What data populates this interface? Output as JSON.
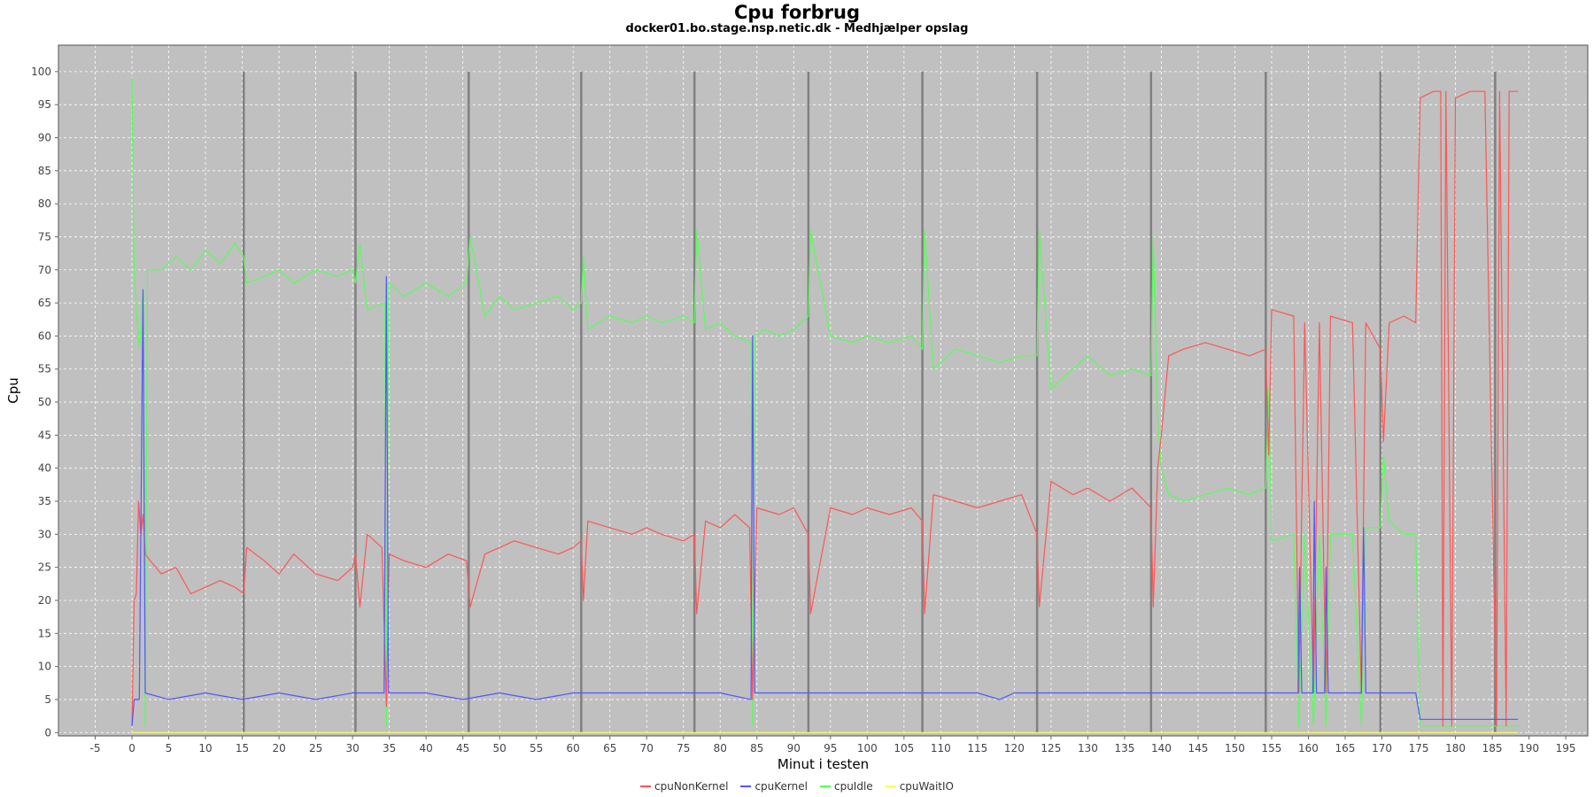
{
  "chart_data": {
    "type": "line",
    "title": "Cpu forbrug",
    "subtitle": "docker01.bo.stage.nsp.netic.dk - Medhjælper opslag",
    "xlabel": "Minut i testen",
    "ylabel": "Cpu",
    "xlim": [
      -10,
      198
    ],
    "ylim": [
      -0.5,
      104
    ],
    "xticks": [
      -5,
      0,
      5,
      10,
      15,
      20,
      25,
      30,
      35,
      40,
      45,
      50,
      55,
      60,
      65,
      70,
      75,
      80,
      85,
      90,
      95,
      100,
      105,
      110,
      115,
      120,
      125,
      130,
      135,
      140,
      145,
      150,
      155,
      160,
      165,
      170,
      175,
      180,
      185,
      190,
      195
    ],
    "yticks": [
      0,
      5,
      10,
      15,
      20,
      25,
      30,
      35,
      40,
      45,
      50,
      55,
      60,
      65,
      70,
      75,
      80,
      85,
      90,
      95,
      100
    ],
    "grid": true,
    "background": "#c0c0c0",
    "legend_position": "bottom",
    "markers": {
      "color": "#808080",
      "x": [
        15.2,
        30.4,
        45.8,
        61.1,
        76.5,
        92.0,
        107.5,
        123.1,
        138.6,
        154.2,
        169.8,
        185.4
      ]
    },
    "series": [
      {
        "name": "cpuNonKernel",
        "color": "#ff5555",
        "points": [
          [
            0,
            1
          ],
          [
            0.3,
            20
          ],
          [
            0.6,
            21
          ],
          [
            0.9,
            35
          ],
          [
            1.2,
            30
          ],
          [
            1.5,
            33
          ],
          [
            1.8,
            27
          ],
          [
            2.5,
            26
          ],
          [
            4,
            24
          ],
          [
            6,
            25
          ],
          [
            8,
            21
          ],
          [
            10,
            22
          ],
          [
            12,
            23
          ],
          [
            14,
            22
          ],
          [
            15.2,
            21
          ],
          [
            15.6,
            28
          ],
          [
            18,
            26
          ],
          [
            20,
            24
          ],
          [
            22,
            27
          ],
          [
            25,
            24
          ],
          [
            28,
            23
          ],
          [
            30,
            25
          ],
          [
            30.4,
            27
          ],
          [
            31,
            19
          ],
          [
            32,
            30
          ],
          [
            34,
            28
          ],
          [
            34.6,
            4
          ],
          [
            35,
            27
          ],
          [
            37,
            26
          ],
          [
            40,
            25
          ],
          [
            43,
            27
          ],
          [
            45.5,
            26
          ],
          [
            46,
            19
          ],
          [
            48,
            27
          ],
          [
            50,
            28
          ],
          [
            52,
            29
          ],
          [
            55,
            28
          ],
          [
            58,
            27
          ],
          [
            60,
            28
          ],
          [
            61.1,
            29
          ],
          [
            61.4,
            20
          ],
          [
            62,
            32
          ],
          [
            65,
            31
          ],
          [
            68,
            30
          ],
          [
            70,
            31
          ],
          [
            72,
            30
          ],
          [
            75,
            29
          ],
          [
            76.5,
            30
          ],
          [
            76.8,
            18
          ],
          [
            78,
            32
          ],
          [
            80,
            31
          ],
          [
            82,
            33
          ],
          [
            84,
            31
          ],
          [
            84.4,
            5
          ],
          [
            85,
            34
          ],
          [
            88,
            33
          ],
          [
            90,
            34
          ],
          [
            92,
            30
          ],
          [
            92.3,
            18
          ],
          [
            95,
            34
          ],
          [
            98,
            33
          ],
          [
            100,
            34
          ],
          [
            103,
            33
          ],
          [
            106,
            34
          ],
          [
            107.5,
            32
          ],
          [
            107.8,
            18
          ],
          [
            109,
            36
          ],
          [
            112,
            35
          ],
          [
            115,
            34
          ],
          [
            118,
            35
          ],
          [
            121,
            36
          ],
          [
            123.1,
            30
          ],
          [
            123.4,
            19
          ],
          [
            125,
            38
          ],
          [
            128,
            36
          ],
          [
            130,
            37
          ],
          [
            133,
            35
          ],
          [
            136,
            37
          ],
          [
            138.6,
            34
          ],
          [
            138.9,
            19
          ],
          [
            139.5,
            40
          ],
          [
            140,
            45
          ],
          [
            141,
            57
          ],
          [
            143,
            58
          ],
          [
            146,
            59
          ],
          [
            149,
            58
          ],
          [
            152,
            57
          ],
          [
            154.2,
            58
          ],
          [
            154.6,
            42
          ],
          [
            155,
            64
          ],
          [
            158,
            63
          ],
          [
            158.7,
            6
          ],
          [
            159.5,
            62
          ],
          [
            160.7,
            6
          ],
          [
            161.5,
            62
          ],
          [
            162.4,
            6
          ],
          [
            163,
            63
          ],
          [
            166,
            62
          ],
          [
            167.2,
            6
          ],
          [
            167.8,
            62
          ],
          [
            169.8,
            58
          ],
          [
            170.2,
            44
          ],
          [
            171,
            62
          ],
          [
            173,
            63
          ],
          [
            174.6,
            62
          ],
          [
            175.2,
            96
          ],
          [
            177,
            97
          ],
          [
            178,
            97
          ],
          [
            178.3,
            1
          ],
          [
            178.7,
            97
          ],
          [
            179.5,
            1
          ],
          [
            180,
            96
          ],
          [
            182,
            97
          ],
          [
            184,
            97
          ],
          [
            185.6,
            1
          ],
          [
            186,
            97
          ],
          [
            186.9,
            1
          ],
          [
            187.3,
            97
          ],
          [
            188.5,
            97
          ]
        ]
      },
      {
        "name": "cpuKernel",
        "color": "#5555ff",
        "points": [
          [
            0,
            1
          ],
          [
            0.3,
            5
          ],
          [
            1,
            5
          ],
          [
            1.5,
            67
          ],
          [
            1.8,
            6
          ],
          [
            5,
            5
          ],
          [
            10,
            6
          ],
          [
            15,
            5
          ],
          [
            20,
            6
          ],
          [
            25,
            5
          ],
          [
            30,
            6
          ],
          [
            34.3,
            6
          ],
          [
            34.6,
            69
          ],
          [
            34.9,
            6
          ],
          [
            40,
            6
          ],
          [
            45,
            5
          ],
          [
            50,
            6
          ],
          [
            55,
            5
          ],
          [
            60,
            6
          ],
          [
            65,
            6
          ],
          [
            70,
            6
          ],
          [
            75,
            6
          ],
          [
            80,
            6
          ],
          [
            84.2,
            5
          ],
          [
            84.4,
            60
          ],
          [
            84.7,
            6
          ],
          [
            90,
            6
          ],
          [
            95,
            6
          ],
          [
            100,
            6
          ],
          [
            105,
            6
          ],
          [
            110,
            6
          ],
          [
            115,
            6
          ],
          [
            118,
            5
          ],
          [
            120,
            6
          ],
          [
            125,
            6
          ],
          [
            130,
            6
          ],
          [
            135,
            6
          ],
          [
            140,
            6
          ],
          [
            145,
            6
          ],
          [
            150,
            6
          ],
          [
            155,
            6
          ],
          [
            158.6,
            6
          ],
          [
            158.8,
            25
          ],
          [
            159.1,
            6
          ],
          [
            160.6,
            6
          ],
          [
            160.8,
            35
          ],
          [
            161.1,
            6
          ],
          [
            162.2,
            6
          ],
          [
            162.4,
            25
          ],
          [
            162.7,
            6
          ],
          [
            167.2,
            6
          ],
          [
            167.5,
            31
          ],
          [
            167.8,
            6
          ],
          [
            170,
            6
          ],
          [
            174.6,
            6
          ],
          [
            175.2,
            2
          ],
          [
            176,
            2
          ],
          [
            180,
            2
          ],
          [
            185,
            2
          ],
          [
            188.5,
            2
          ]
        ]
      },
      {
        "name": "cpuIdle",
        "color": "#55ff55",
        "points": [
          [
            0,
            99
          ],
          [
            0.3,
            70
          ],
          [
            0.6,
            64
          ],
          [
            1,
            58
          ],
          [
            1.5,
            67
          ],
          [
            1.8,
            1
          ],
          [
            2.1,
            70
          ],
          [
            4,
            70
          ],
          [
            6,
            72
          ],
          [
            8,
            70
          ],
          [
            10,
            73
          ],
          [
            12,
            71
          ],
          [
            14,
            74
          ],
          [
            15.2,
            72
          ],
          [
            15.6,
            68
          ],
          [
            18,
            69
          ],
          [
            20,
            70
          ],
          [
            22,
            68
          ],
          [
            25,
            70
          ],
          [
            28,
            69
          ],
          [
            30,
            70
          ],
          [
            30.4,
            68
          ],
          [
            31,
            74
          ],
          [
            32,
            64
          ],
          [
            34.4,
            65
          ],
          [
            34.6,
            1
          ],
          [
            34.9,
            68
          ],
          [
            37,
            66
          ],
          [
            40,
            68
          ],
          [
            43,
            66
          ],
          [
            45.5,
            68
          ],
          [
            46,
            75
          ],
          [
            48,
            63
          ],
          [
            50,
            66
          ],
          [
            52,
            64
          ],
          [
            55,
            65
          ],
          [
            58,
            66
          ],
          [
            60,
            64
          ],
          [
            61.1,
            65
          ],
          [
            61.4,
            72
          ],
          [
            62,
            61
          ],
          [
            65,
            63
          ],
          [
            68,
            62
          ],
          [
            70,
            63
          ],
          [
            72,
            62
          ],
          [
            75,
            63
          ],
          [
            76.5,
            62
          ],
          [
            76.8,
            76
          ],
          [
            78,
            61
          ],
          [
            80,
            62
          ],
          [
            82,
            60
          ],
          [
            84.2,
            59
          ],
          [
            84.4,
            1
          ],
          [
            84.7,
            60
          ],
          [
            86,
            61
          ],
          [
            88,
            60
          ],
          [
            90,
            61
          ],
          [
            92,
            63
          ],
          [
            92.3,
            76
          ],
          [
            95,
            60
          ],
          [
            98,
            59
          ],
          [
            100,
            60
          ],
          [
            103,
            59
          ],
          [
            106,
            60
          ],
          [
            107.5,
            58
          ],
          [
            107.8,
            76
          ],
          [
            109,
            55
          ],
          [
            112,
            58
          ],
          [
            115,
            57
          ],
          [
            118,
            56
          ],
          [
            121,
            57
          ],
          [
            123.1,
            57
          ],
          [
            123.4,
            76
          ],
          [
            125,
            52
          ],
          [
            128,
            55
          ],
          [
            130,
            57
          ],
          [
            133,
            54
          ],
          [
            136,
            55
          ],
          [
            138.6,
            54
          ],
          [
            138.9,
            75
          ],
          [
            139.5,
            47
          ],
          [
            140,
            40
          ],
          [
            141,
            36
          ],
          [
            143,
            35
          ],
          [
            146,
            36
          ],
          [
            149,
            37
          ],
          [
            152,
            36
          ],
          [
            154.2,
            37
          ],
          [
            154.6,
            52
          ],
          [
            155,
            29
          ],
          [
            158,
            30
          ],
          [
            158.7,
            1
          ],
          [
            159.5,
            30
          ],
          [
            160.7,
            1
          ],
          [
            161.5,
            30
          ],
          [
            162.4,
            1
          ],
          [
            163,
            30
          ],
          [
            166,
            30
          ],
          [
            167.2,
            1
          ],
          [
            167.8,
            31
          ],
          [
            169.8,
            31
          ],
          [
            170.2,
            42
          ],
          [
            171,
            32
          ],
          [
            173,
            30
          ],
          [
            174.6,
            30
          ],
          [
            175.2,
            1
          ],
          [
            177,
            1
          ],
          [
            180,
            1
          ],
          [
            185,
            1
          ],
          [
            188.5,
            1
          ]
        ]
      },
      {
        "name": "cpuWaitIO",
        "color": "#ffff55",
        "points": [
          [
            0,
            0
          ],
          [
            30,
            0
          ],
          [
            60,
            0
          ],
          [
            90,
            0
          ],
          [
            120,
            0
          ],
          [
            150,
            0
          ],
          [
            175,
            0
          ],
          [
            188.5,
            0
          ]
        ]
      }
    ]
  }
}
